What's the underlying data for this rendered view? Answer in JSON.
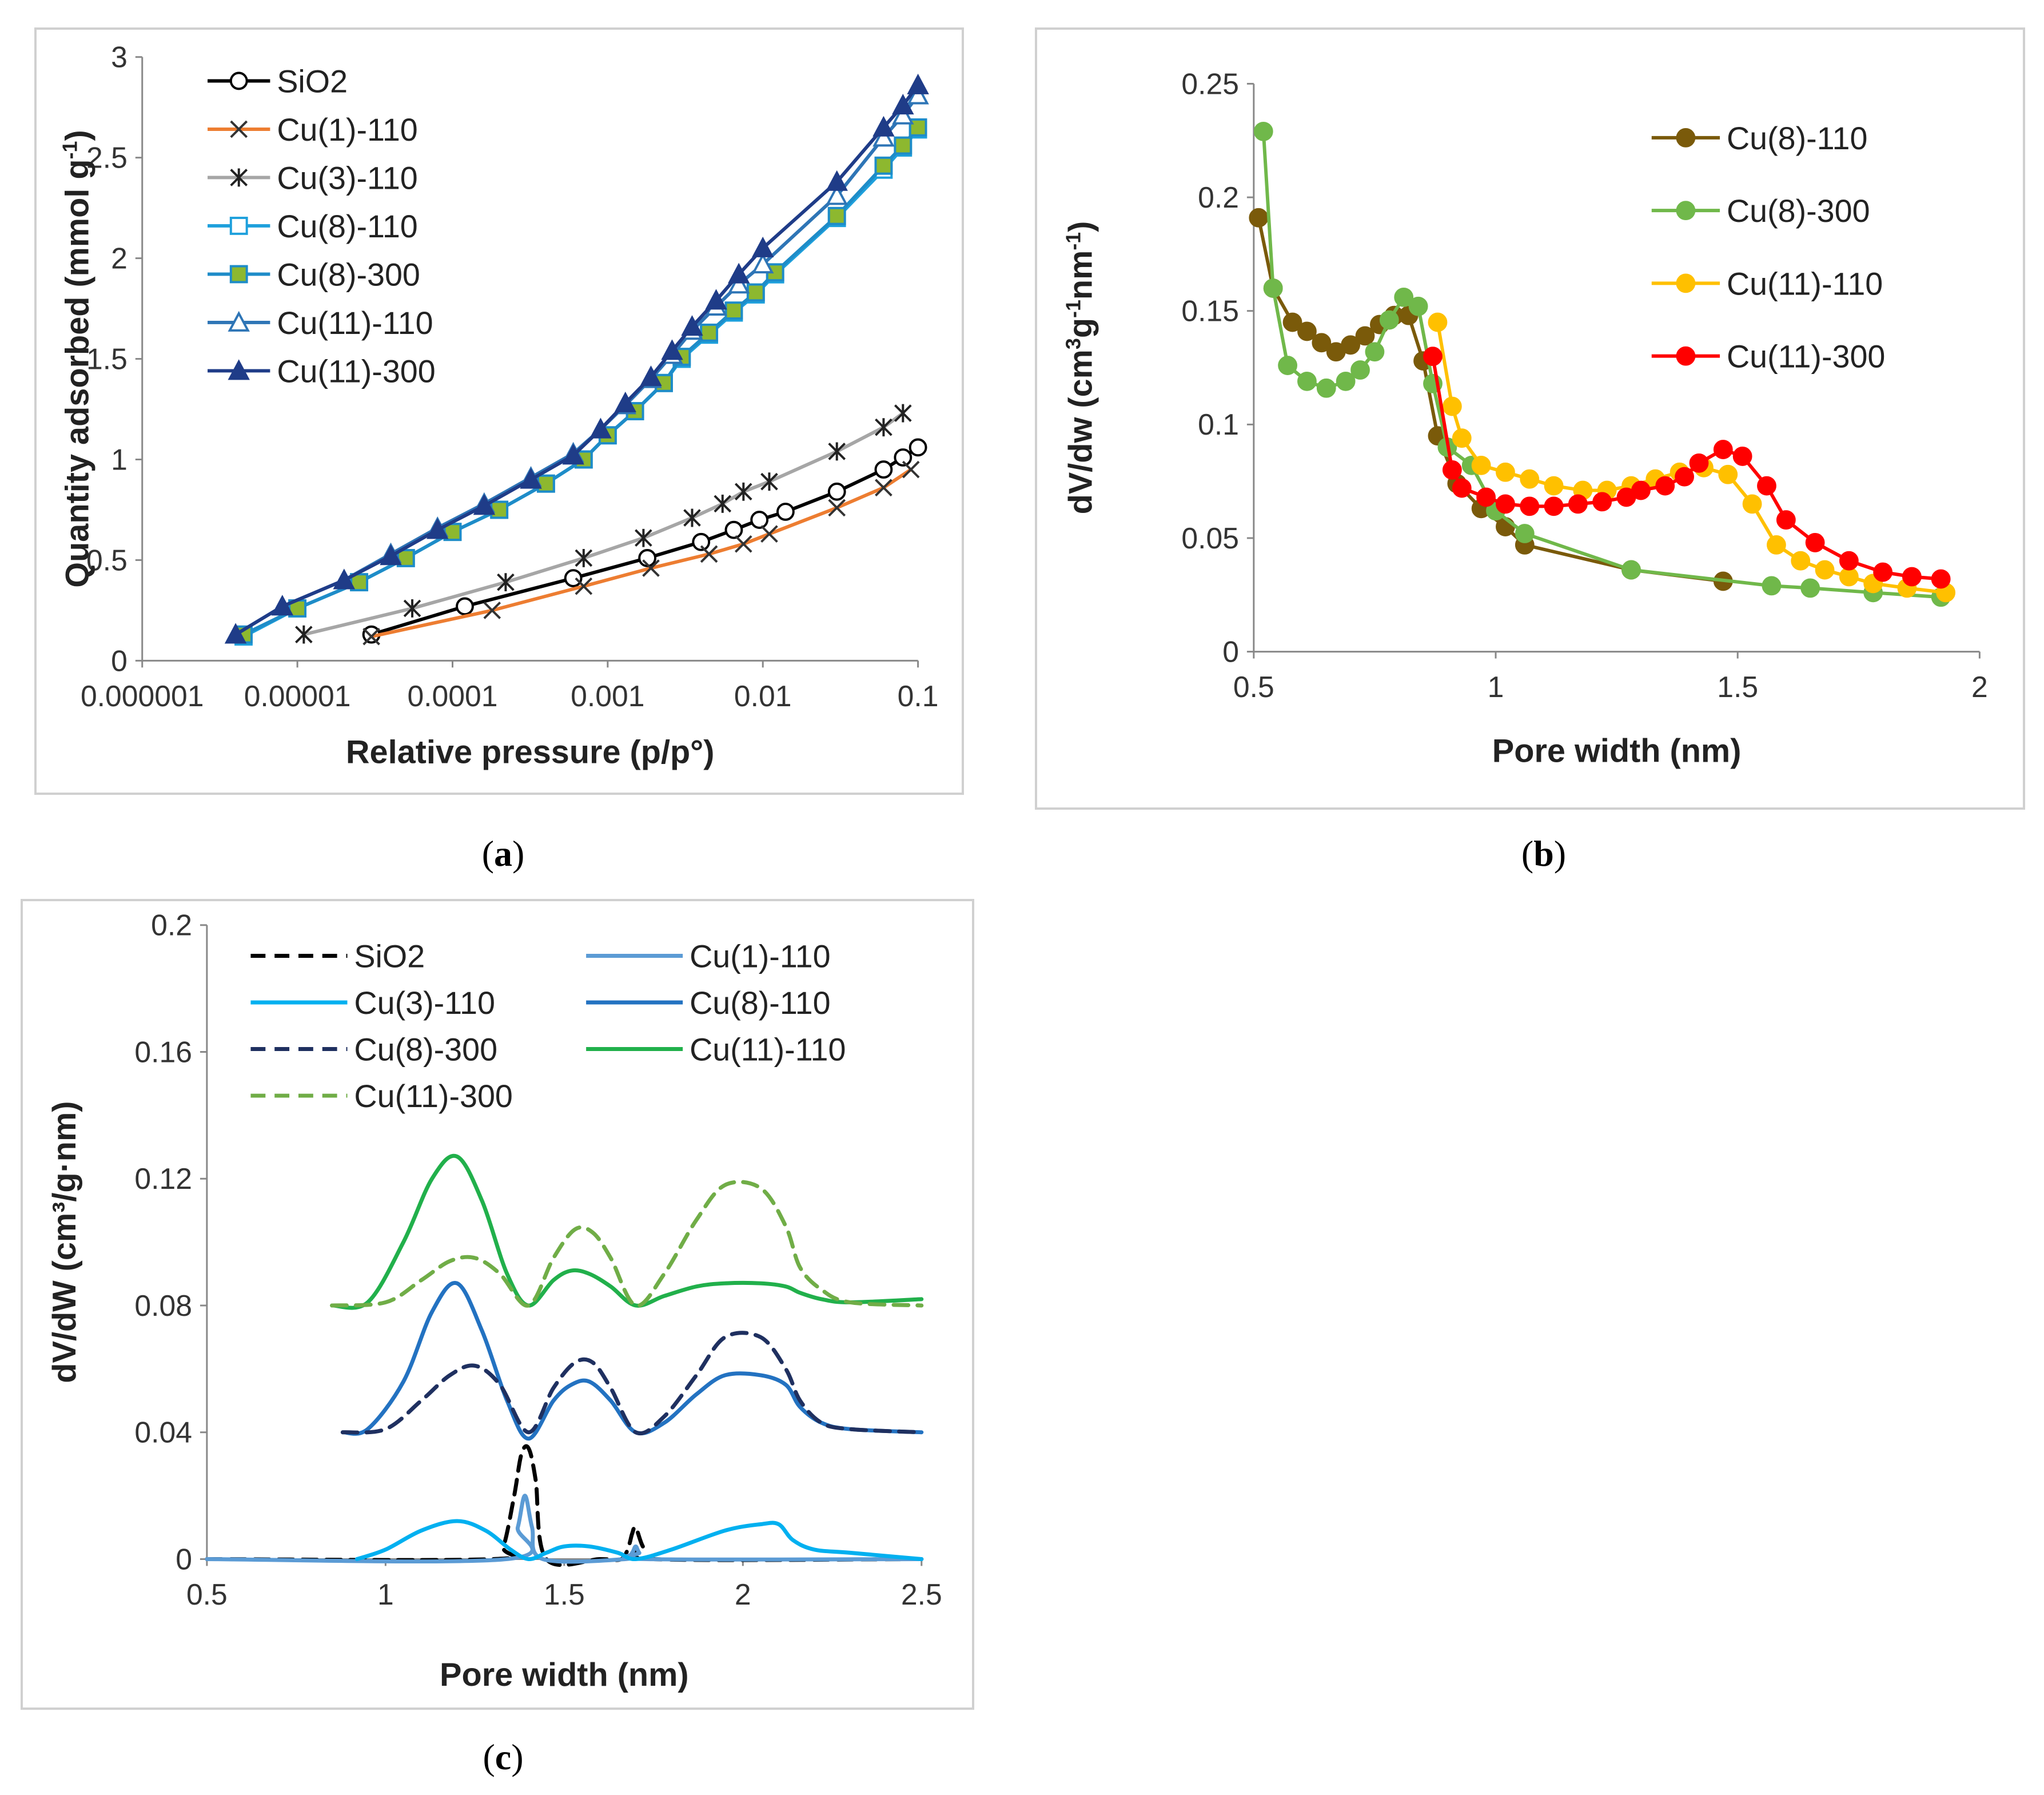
{
  "chart_data": [
    {
      "id": "a",
      "type": "line",
      "caption": "a",
      "xlabel": "Relative pressure (p/p°)",
      "ylabel": "Quantity adsorbed (mmol g",
      "ylabel_sup": "-1",
      "ylabel_end": ")",
      "xscale": "log",
      "xlim": [
        1e-06,
        0.1
      ],
      "ylim": [
        0,
        3
      ],
      "xticks": [
        1e-06,
        1e-05,
        0.0001,
        0.001,
        0.01,
        0.1
      ],
      "xtick_labels": [
        "0.000001",
        "0.00001",
        "0.0001",
        "0.001",
        "0.01",
        "0.1"
      ],
      "yticks": [
        0,
        0.5,
        1,
        1.5,
        2,
        2.5,
        3
      ],
      "ytick_labels": [
        "0",
        "0.5",
        "1",
        "1.5",
        "2",
        "2.5",
        "3"
      ],
      "legend_position": "top-left",
      "series": [
        {
          "name": "SiO2",
          "color": "#000000",
          "marker": "circle-open",
          "x": [
            3e-05,
            0.00012,
            0.0006,
            0.0018,
            0.004,
            0.0065,
            0.0095,
            0.014,
            0.03,
            0.06,
            0.08,
            0.1
          ],
          "y": [
            0.13,
            0.27,
            0.41,
            0.51,
            0.59,
            0.65,
            0.7,
            0.74,
            0.84,
            0.95,
            1.01,
            1.06
          ]
        },
        {
          "name": "Cu(1)-110",
          "color": "#ed7d31",
          "marker": "x",
          "x": [
            3e-05,
            0.00018,
            0.0007,
            0.0019,
            0.0045,
            0.0075,
            0.011,
            0.03,
            0.06,
            0.09
          ],
          "y": [
            0.12,
            0.25,
            0.37,
            0.46,
            0.53,
            0.58,
            0.63,
            0.76,
            0.86,
            0.95
          ]
        },
        {
          "name": "Cu(3)-110",
          "color": "#a6a6a6",
          "marker": "star",
          "x": [
            1.1e-05,
            5.5e-05,
            0.00022,
            0.0007,
            0.0017,
            0.0035,
            0.0055,
            0.0075,
            0.011,
            0.03,
            0.06,
            0.08
          ],
          "y": [
            0.13,
            0.26,
            0.39,
            0.51,
            0.61,
            0.71,
            0.78,
            0.84,
            0.89,
            1.04,
            1.16,
            1.23
          ]
        },
        {
          "name": "Cu(8)-110",
          "color": "#1ea0dc",
          "marker": "square-open",
          "x": [
            4.5e-06,
            1e-05,
            2.5e-05,
            5e-05,
            0.0001,
            0.0002,
            0.0004,
            0.0007,
            0.001,
            0.0015,
            0.0023,
            0.003,
            0.0045,
            0.0065,
            0.009,
            0.012,
            0.03,
            0.06,
            0.08,
            0.1
          ],
          "y": [
            0.12,
            0.26,
            0.39,
            0.51,
            0.64,
            0.75,
            0.88,
            1.0,
            1.12,
            1.24,
            1.38,
            1.5,
            1.62,
            1.73,
            1.82,
            1.92,
            2.2,
            2.44,
            2.55,
            2.64
          ]
        },
        {
          "name": "Cu(8)-300",
          "color": "#1e8cc8",
          "marker": "square-filled",
          "fill": "#8db82f",
          "x": [
            4.5e-06,
            1e-05,
            2.5e-05,
            5e-05,
            0.0001,
            0.0002,
            0.0004,
            0.0007,
            0.001,
            0.0015,
            0.0023,
            0.003,
            0.0045,
            0.0065,
            0.009,
            0.012,
            0.03,
            0.06,
            0.08,
            0.1
          ],
          "y": [
            0.13,
            0.26,
            0.39,
            0.51,
            0.64,
            0.75,
            0.88,
            1.0,
            1.12,
            1.24,
            1.38,
            1.51,
            1.63,
            1.74,
            1.83,
            1.93,
            2.21,
            2.46,
            2.56,
            2.65
          ]
        },
        {
          "name": "Cu(11)-110",
          "color": "#2e75b6",
          "marker": "triangle-open",
          "x": [
            4e-06,
            8e-06,
            2e-05,
            4e-05,
            8e-05,
            0.00016,
            0.00032,
            0.0006,
            0.0009,
            0.0013,
            0.0019,
            0.0026,
            0.0035,
            0.005,
            0.007,
            0.01,
            0.03,
            0.06,
            0.08,
            0.1
          ],
          "y": [
            0.13,
            0.27,
            0.4,
            0.53,
            0.66,
            0.78,
            0.91,
            1.03,
            1.15,
            1.27,
            1.4,
            1.52,
            1.64,
            1.76,
            1.87,
            1.97,
            2.31,
            2.6,
            2.71,
            2.81
          ]
        },
        {
          "name": "Cu(11)-300",
          "color": "#1f3c88",
          "marker": "triangle-filled",
          "x": [
            4e-06,
            8e-06,
            2e-05,
            4e-05,
            8e-05,
            0.00016,
            0.00032,
            0.0006,
            0.0009,
            0.0013,
            0.0019,
            0.0026,
            0.0035,
            0.005,
            0.007,
            0.01,
            0.03,
            0.06,
            0.08,
            0.1
          ],
          "y": [
            0.13,
            0.27,
            0.4,
            0.52,
            0.65,
            0.77,
            0.9,
            1.02,
            1.15,
            1.28,
            1.41,
            1.54,
            1.66,
            1.79,
            1.92,
            2.05,
            2.38,
            2.65,
            2.76,
            2.86
          ]
        }
      ]
    },
    {
      "id": "b",
      "type": "line",
      "caption": "b",
      "xlabel": "Pore width (nm)",
      "ylabel": "dV/dw (cm",
      "ylabel_parts": [
        "dV/dw (cm",
        "3",
        "g",
        "-1",
        "nm",
        "-1",
        ")"
      ],
      "xlim": [
        0.5,
        2
      ],
      "ylim": [
        0,
        0.25
      ],
      "xticks": [
        0.5,
        1,
        1.5,
        2
      ],
      "xtick_labels": [
        "0.5",
        "1",
        "1.5",
        "2"
      ],
      "yticks": [
        0,
        0.05,
        0.1,
        0.15,
        0.2,
        0.25
      ],
      "ytick_labels": [
        "0",
        "0.05",
        "0.1",
        "0.15",
        "0.2",
        "0.25"
      ],
      "legend_position": "top-right",
      "series": [
        {
          "name": "Cu(8)-110",
          "color": "#7a5a0a",
          "x": [
            0.51,
            0.54,
            0.58,
            0.61,
            0.64,
            0.67,
            0.7,
            0.73,
            0.76,
            0.79,
            0.82,
            0.85,
            0.88,
            0.92,
            0.97,
            1.02,
            1.06,
            1.28,
            1.47
          ],
          "y": [
            0.191,
            0.16,
            0.145,
            0.141,
            0.136,
            0.132,
            0.135,
            0.139,
            0.144,
            0.148,
            0.148,
            0.128,
            0.095,
            0.074,
            0.063,
            0.055,
            0.047,
            0.036,
            0.031
          ]
        },
        {
          "name": "Cu(8)-300",
          "color": "#70b84a",
          "x": [
            0.52,
            0.54,
            0.57,
            0.61,
            0.65,
            0.69,
            0.72,
            0.75,
            0.78,
            0.81,
            0.84,
            0.87,
            0.9,
            0.95,
            1.0,
            1.06,
            1.28,
            1.57,
            1.65,
            1.78,
            1.92
          ],
          "y": [
            0.229,
            0.16,
            0.126,
            0.119,
            0.116,
            0.119,
            0.124,
            0.132,
            0.146,
            0.156,
            0.152,
            0.118,
            0.09,
            0.082,
            0.062,
            0.052,
            0.036,
            0.029,
            0.028,
            0.026,
            0.024
          ]
        },
        {
          "name": "Cu(11)-110",
          "color": "#ffc000",
          "x": [
            0.88,
            0.91,
            0.93,
            0.97,
            1.02,
            1.07,
            1.12,
            1.18,
            1.23,
            1.28,
            1.33,
            1.38,
            1.43,
            1.48,
            1.53,
            1.58,
            1.63,
            1.68,
            1.73,
            1.78,
            1.85,
            1.93
          ],
          "y": [
            0.145,
            0.108,
            0.094,
            0.082,
            0.079,
            0.076,
            0.073,
            0.071,
            0.071,
            0.073,
            0.076,
            0.079,
            0.081,
            0.078,
            0.065,
            0.047,
            0.04,
            0.036,
            0.033,
            0.03,
            0.028,
            0.026
          ]
        },
        {
          "name": "Cu(11)-300",
          "color": "#ff0000",
          "x": [
            0.87,
            0.91,
            0.93,
            0.98,
            1.02,
            1.07,
            1.12,
            1.17,
            1.22,
            1.27,
            1.3,
            1.35,
            1.39,
            1.42,
            1.47,
            1.51,
            1.56,
            1.6,
            1.66,
            1.73,
            1.8,
            1.86,
            1.92
          ],
          "y": [
            0.13,
            0.08,
            0.072,
            0.068,
            0.065,
            0.064,
            0.064,
            0.065,
            0.066,
            0.068,
            0.071,
            0.073,
            0.077,
            0.083,
            0.089,
            0.086,
            0.073,
            0.058,
            0.048,
            0.04,
            0.035,
            0.033,
            0.032
          ]
        }
      ]
    },
    {
      "id": "c",
      "type": "line",
      "caption": "c",
      "xlabel": "Pore width (nm)",
      "ylabel": "dV/dW  (cm³/g·nm)",
      "xlim": [
        0.5,
        2.5
      ],
      "ylim": [
        0,
        0.2
      ],
      "xticks": [
        0.5,
        1,
        1.5,
        2,
        2.5
      ],
      "xtick_labels": [
        "0.5",
        "1",
        "1.5",
        "2",
        "2.5"
      ],
      "yticks": [
        0,
        0.04,
        0.08,
        0.12,
        0.16,
        0.2
      ],
      "ytick_labels": [
        "0",
        "0.04",
        "0.08",
        "0.12",
        "0.16",
        "0.2"
      ],
      "legend_position": "top",
      "series": [
        {
          "name": "SiO2",
          "color": "#000000",
          "dash": true,
          "x": [
            0.5,
            1.3,
            1.33,
            1.36,
            1.38,
            1.4,
            1.42,
            1.45,
            1.6,
            1.66,
            1.68,
            1.69,
            1.7,
            1.72,
            1.75,
            2.5
          ],
          "y": [
            0,
            0,
            0.004,
            0.02,
            0.033,
            0.035,
            0.025,
            0,
            0,
            0,
            0.004,
            0.008,
            0.01,
            0.004,
            0,
            0
          ]
        },
        {
          "name": "Cu(1)-110",
          "color": "#5b9bd5",
          "dash": false,
          "x": [
            0.5,
            1.34,
            1.37,
            1.39,
            1.41,
            1.44,
            1.67,
            1.69,
            1.7,
            1.71,
            1.73,
            2.5
          ],
          "y": [
            0,
            0,
            0.01,
            0.02,
            0.01,
            0,
            0,
            0.002,
            0.004,
            0.002,
            0,
            0
          ]
        },
        {
          "name": "Cu(3)-110",
          "color": "#00b0f0",
          "dash": false,
          "x": [
            0.92,
            1.0,
            1.1,
            1.2,
            1.28,
            1.35,
            1.4,
            1.45,
            1.5,
            1.57,
            1.65,
            1.7,
            1.8,
            1.95,
            2.05,
            2.1,
            2.14,
            2.2,
            2.3,
            2.5
          ],
          "y": [
            0,
            0.003,
            0.009,
            0.012,
            0.009,
            0.003,
            0,
            0.002,
            0.004,
            0.004,
            0.002,
            0,
            0.003,
            0.009,
            0.011,
            0.011,
            0.006,
            0.003,
            0.002,
            0
          ]
        },
        {
          "name": "Cu(8)-110",
          "color": "#2372c1",
          "dash": false,
          "x": [
            0.88,
            0.95,
            1.05,
            1.13,
            1.2,
            1.27,
            1.34,
            1.4,
            1.47,
            1.52,
            1.57,
            1.63,
            1.7,
            1.78,
            1.87,
            1.95,
            2.05,
            2.12,
            2.16,
            2.22,
            2.3,
            2.5
          ],
          "y": [
            0.04,
            0.041,
            0.056,
            0.078,
            0.087,
            0.072,
            0.05,
            0.038,
            0.05,
            0.055,
            0.056,
            0.05,
            0.04,
            0.043,
            0.052,
            0.058,
            0.058,
            0.055,
            0.048,
            0.043,
            0.041,
            0.04
          ]
        },
        {
          "name": "Cu(8)-300",
          "color": "#1f3060",
          "dash": true,
          "x": [
            0.88,
            1.0,
            1.1,
            1.18,
            1.25,
            1.32,
            1.4,
            1.47,
            1.53,
            1.58,
            1.63,
            1.7,
            1.78,
            1.87,
            1.95,
            2.05,
            2.12,
            2.16,
            2.22,
            2.3,
            2.5
          ],
          "y": [
            0.04,
            0.041,
            0.05,
            0.058,
            0.061,
            0.055,
            0.04,
            0.054,
            0.062,
            0.062,
            0.054,
            0.04,
            0.045,
            0.058,
            0.07,
            0.07,
            0.06,
            0.05,
            0.043,
            0.041,
            0.04
          ]
        },
        {
          "name": "Cu(11)-110",
          "color": "#21b04b",
          "dash": false,
          "x": [
            0.85,
            0.95,
            1.05,
            1.13,
            1.2,
            1.27,
            1.34,
            1.4,
            1.47,
            1.52,
            1.57,
            1.63,
            1.7,
            1.78,
            1.87,
            1.95,
            2.05,
            2.12,
            2.16,
            2.22,
            2.3,
            2.5
          ],
          "y": [
            0.08,
            0.081,
            0.1,
            0.12,
            0.127,
            0.113,
            0.09,
            0.08,
            0.088,
            0.091,
            0.09,
            0.086,
            0.08,
            0.083,
            0.086,
            0.087,
            0.087,
            0.086,
            0.084,
            0.082,
            0.081,
            0.082
          ]
        },
        {
          "name": "Cu(11)-300",
          "color": "#70ad47",
          "dash": true,
          "x": [
            0.85,
            1.0,
            1.1,
            1.18,
            1.25,
            1.32,
            1.4,
            1.47,
            1.53,
            1.58,
            1.63,
            1.7,
            1.78,
            1.87,
            1.95,
            2.05,
            2.12,
            2.16,
            2.22,
            2.3,
            2.5
          ],
          "y": [
            0.08,
            0.081,
            0.088,
            0.094,
            0.095,
            0.09,
            0.08,
            0.095,
            0.104,
            0.103,
            0.095,
            0.08,
            0.09,
            0.107,
            0.118,
            0.117,
            0.105,
            0.092,
            0.085,
            0.081,
            0.08
          ]
        }
      ]
    }
  ]
}
